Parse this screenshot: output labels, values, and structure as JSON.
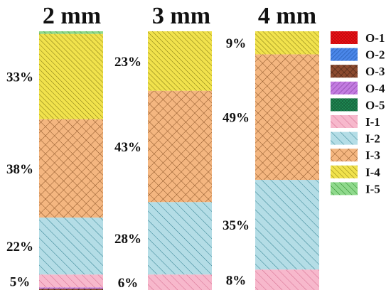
{
  "chart_data": {
    "type": "bar",
    "stacked": true,
    "categories": [
      "2 mm",
      "3 mm",
      "4 mm"
    ],
    "series": [
      {
        "name": "O-1",
        "color": "#e8141b",
        "values": [
          0,
          0,
          0
        ]
      },
      {
        "name": "O-2",
        "color": "#4a86e8",
        "values": [
          0,
          0,
          0
        ]
      },
      {
        "name": "O-3",
        "color": "#8b4a2f",
        "values": [
          0.5,
          0,
          0
        ]
      },
      {
        "name": "O-4",
        "color": "#c27be0",
        "values": [
          0.5,
          0,
          0
        ]
      },
      {
        "name": "O-5",
        "color": "#1f8a54",
        "values": [
          0,
          0,
          0
        ]
      },
      {
        "name": "I-1",
        "color": "#f7b8cc",
        "values": [
          5,
          6,
          8
        ]
      },
      {
        "name": "I-2",
        "color": "#b4dde6",
        "values": [
          22,
          28,
          35
        ]
      },
      {
        "name": "I-3",
        "color": "#f4b680",
        "values": [
          38,
          43,
          49
        ]
      },
      {
        "name": "I-4",
        "color": "#f1e24c",
        "values": [
          33,
          23,
          9
        ]
      },
      {
        "name": "I-5",
        "color": "#8fd98c",
        "values": [
          1,
          0,
          0
        ]
      }
    ],
    "data_labels": [
      [
        "5%",
        "22%",
        "38%",
        "33%"
      ],
      [
        "6%",
        "28%",
        "43%",
        "23%"
      ],
      [
        "8%",
        "35%",
        "49%",
        "9%"
      ]
    ],
    "ylim": [
      0,
      100
    ],
    "legend": "right",
    "grid": false
  }
}
